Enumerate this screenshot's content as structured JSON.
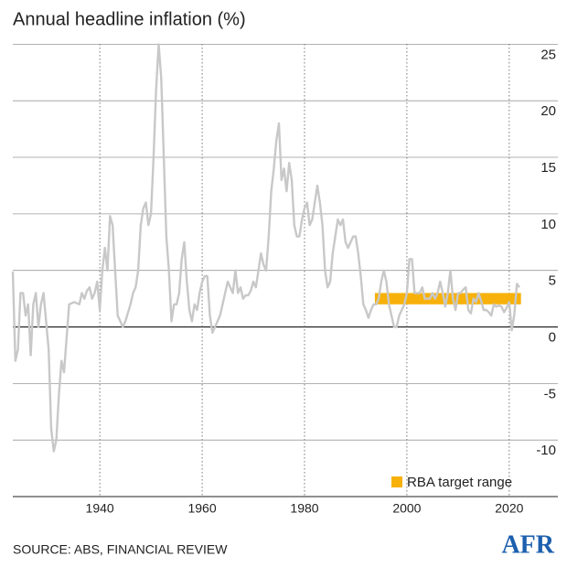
{
  "chart_data": {
    "type": "line",
    "title": "Annual headline inflation (%)",
    "source": "SOURCE: ABS, FINANCIAL REVIEW",
    "logo": "AFR",
    "xlim": [
      1923,
      2029.5
    ],
    "ylim": [
      -15,
      26
    ],
    "xticks": [
      1940,
      1960,
      1980,
      2000,
      2020
    ],
    "yticks": [
      -10,
      -5,
      0,
      5,
      10,
      15,
      20,
      25
    ],
    "grid": true,
    "series": [
      {
        "name": "Annual headline inflation",
        "color": "#c8c8c8",
        "x": [
          1923,
          1923.5,
          1924,
          1924.5,
          1925,
          1925.5,
          1926,
          1926.5,
          1927,
          1927.5,
          1928,
          1928.5,
          1929,
          1930,
          1930.5,
          1931,
          1931.5,
          1932,
          1932.5,
          1933,
          1933.5,
          1934,
          1935,
          1936,
          1936.5,
          1937,
          1937.5,
          1938,
          1938.5,
          1939,
          1939.5,
          1940,
          1940.5,
          1941,
          1941.5,
          1942,
          1942.5,
          1943,
          1943.5,
          1944,
          1944.5,
          1945,
          1946,
          1946.5,
          1947,
          1947.5,
          1948,
          1948.5,
          1949,
          1949.5,
          1950,
          1950.5,
          1951,
          1951.5,
          1952,
          1952.5,
          1953,
          1953.5,
          1954,
          1954.5,
          1955,
          1955.5,
          1956,
          1956.5,
          1957,
          1957.5,
          1958,
          1958.5,
          1959,
          1959.5,
          1960,
          1960.5,
          1961,
          1961.5,
          1962,
          1962.5,
          1963,
          1963.5,
          1964,
          1964.5,
          1965,
          1966,
          1966.5,
          1967,
          1967.5,
          1968,
          1968.5,
          1969,
          1969.5,
          1970,
          1970.5,
          1971,
          1971.5,
          1972,
          1972.5,
          1973,
          1973.5,
          1974,
          1974.5,
          1975,
          1975.5,
          1976,
          1976.5,
          1977,
          1977.5,
          1978,
          1978.5,
          1979,
          1979.5,
          1980,
          1980.5,
          1981,
          1981.5,
          1982,
          1982.5,
          1983,
          1983.5,
          1984,
          1984.5,
          1985,
          1985.5,
          1986,
          1986.5,
          1987,
          1987.5,
          1988,
          1988.5,
          1989,
          1989.5,
          1990,
          1990.5,
          1991,
          1991.5,
          1992,
          1992.5,
          1993,
          1993.5,
          1994,
          1994.5,
          1995,
          1995.5,
          1996,
          1996.5,
          1997,
          1997.5,
          1998,
          1998.5,
          1999,
          1999.5,
          2000,
          2000.5,
          2001,
          2001.5,
          2002,
          2002.5,
          2003,
          2003.5,
          2004,
          2004.5,
          2005,
          2005.5,
          2006,
          2006.5,
          2007,
          2007.5,
          2008,
          2008.5,
          2009,
          2009.5,
          2010,
          2010.5,
          2011,
          2011.5,
          2012,
          2012.5,
          2013,
          2013.5,
          2014,
          2014.5,
          2015,
          2015.5,
          2016,
          2016.5,
          2017,
          2017.5,
          2018,
          2018.5,
          2019,
          2019.5,
          2020,
          2020.5,
          2021,
          2021.5,
          2022
        ],
        "values": [
          4.9,
          -3,
          -2,
          3,
          3,
          1,
          2,
          -2.5,
          2,
          3,
          0,
          2,
          3,
          -2,
          -9,
          -11,
          -10,
          -6,
          -3,
          -4,
          -1,
          2,
          2.2,
          2,
          3,
          2.5,
          3.2,
          3.5,
          2.5,
          3,
          4,
          1.5,
          5,
          7,
          5,
          9.8,
          9,
          5,
          1,
          0.5,
          0,
          0.5,
          2,
          3,
          3.5,
          5,
          9,
          10.5,
          11,
          9,
          10,
          15,
          21,
          25,
          22,
          15,
          8,
          5,
          0.5,
          2,
          2,
          3,
          6,
          7.5,
          4,
          1.5,
          0.5,
          2,
          1.5,
          3,
          4,
          4.5,
          4.5,
          1,
          -0.5,
          0,
          0.5,
          1,
          2,
          3,
          4,
          3,
          5,
          3,
          3.5,
          2.5,
          2.8,
          2.8,
          3.2,
          4,
          3.5,
          5,
          6.5,
          5.5,
          5,
          8,
          12,
          14,
          16.5,
          18,
          13,
          14,
          12,
          14.5,
          13,
          9,
          8,
          8,
          9.5,
          10.5,
          11,
          9,
          9.5,
          11,
          12.5,
          11,
          9,
          5,
          3.5,
          4,
          6.5,
          8,
          9.5,
          9,
          9.5,
          7.5,
          7,
          7.5,
          8,
          8,
          6.5,
          4.5,
          2,
          1.5,
          0.8,
          1.5,
          2,
          2,
          2.5,
          4,
          5,
          4,
          2,
          1,
          0,
          0,
          1,
          1.5,
          2,
          3,
          6,
          6,
          3,
          3,
          3,
          3.5,
          2.5,
          2.5,
          2.5,
          3,
          2.5,
          3,
          4,
          3,
          1.8,
          3,
          5,
          2.5,
          1.5,
          3,
          3,
          3.3,
          3.5,
          1.5,
          1.2,
          2.5,
          2.2,
          3,
          2.3,
          1.5,
          1.5,
          1.3,
          1,
          2,
          1.8,
          1.9,
          1.8,
          1.3,
          1.7,
          2.2,
          -0.3,
          1.1,
          3.8,
          3.5
        ]
      }
    ],
    "target_range": {
      "name": "RBA target range",
      "color": "#f7b10a",
      "x": [
        1993.75,
        2022.3
      ],
      "y": [
        2,
        3
      ]
    }
  }
}
